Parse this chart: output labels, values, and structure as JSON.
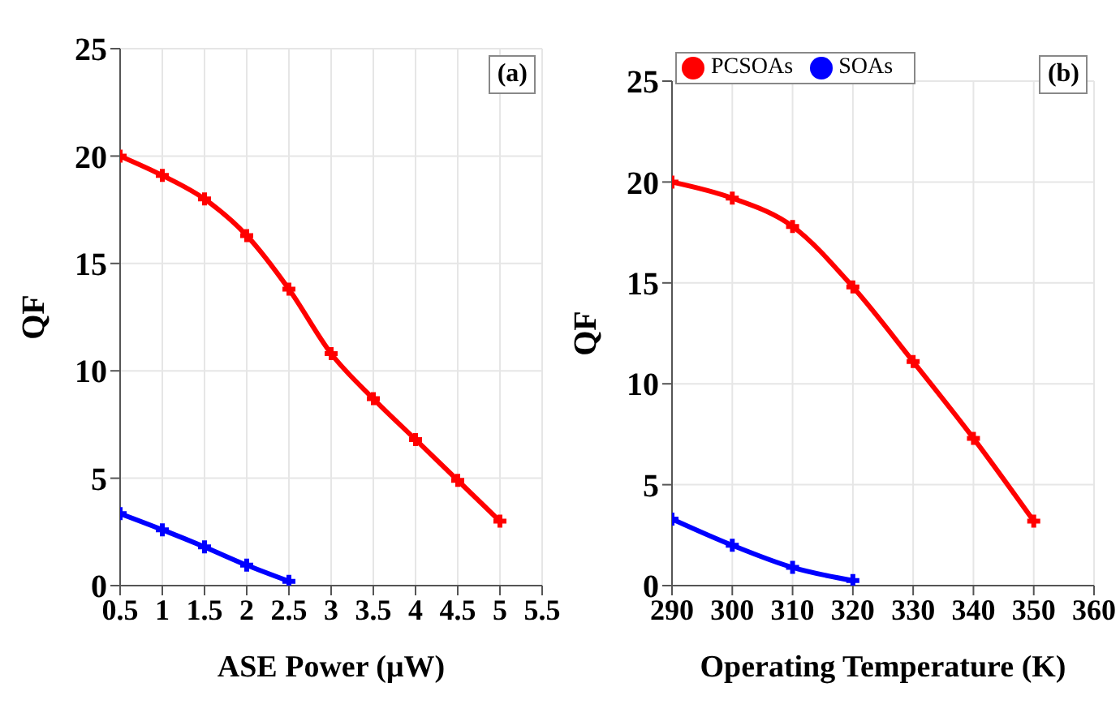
{
  "chart_data": [
    {
      "type": "line",
      "xlabel": "ASE Power (μW)",
      "ylabel": "QF",
      "x": [
        0.5,
        1,
        1.5,
        2,
        2.5,
        3,
        3.5,
        4,
        4.5,
        5
      ],
      "xlim": [
        0.5,
        5.5
      ],
      "xticks": [
        0.5,
        1,
        1.5,
        2,
        2.5,
        3,
        3.5,
        4,
        4.5,
        5,
        5.5
      ],
      "ylim": [
        0,
        25
      ],
      "yticks": [
        0,
        5,
        10,
        15,
        20,
        25
      ],
      "grid": true,
      "marker": "cross",
      "line_style": "solid",
      "legend": false,
      "annotations": [
        "(a)"
      ],
      "series": [
        {
          "color": "#ff0000",
          "values": [
            20.0,
            19.1,
            18.0,
            16.3,
            13.8,
            10.8,
            8.7,
            6.8,
            4.9,
            3.0
          ]
        },
        {
          "color": "#0000ff",
          "x": [
            0.5,
            1,
            1.5,
            2,
            2.5
          ],
          "values": [
            3.35,
            2.6,
            1.8,
            0.95,
            0.2
          ]
        }
      ]
    },
    {
      "type": "line",
      "xlabel": "Operating Temperature (K)",
      "ylabel": "QF",
      "x": [
        290,
        300,
        310,
        320,
        330,
        340,
        350
      ],
      "xlim": [
        290,
        360
      ],
      "xticks": [
        290,
        300,
        310,
        320,
        330,
        340,
        350,
        360
      ],
      "ylim": [
        0,
        25
      ],
      "yticks": [
        0,
        5,
        10,
        15,
        20,
        25
      ],
      "grid": true,
      "marker": "cross",
      "line_style": "solid",
      "legend": "top left",
      "annotations": [
        "(b)"
      ],
      "series": [
        {
          "name": "PCSOAs",
          "color": "#ff0000",
          "values": [
            20.0,
            19.2,
            17.8,
            14.8,
            11.1,
            7.3,
            3.2
          ]
        },
        {
          "name": "SOAs",
          "color": "#0000ff",
          "x": [
            290,
            300,
            310,
            320
          ],
          "values": [
            3.3,
            2.0,
            0.9,
            0.25
          ]
        }
      ]
    }
  ]
}
